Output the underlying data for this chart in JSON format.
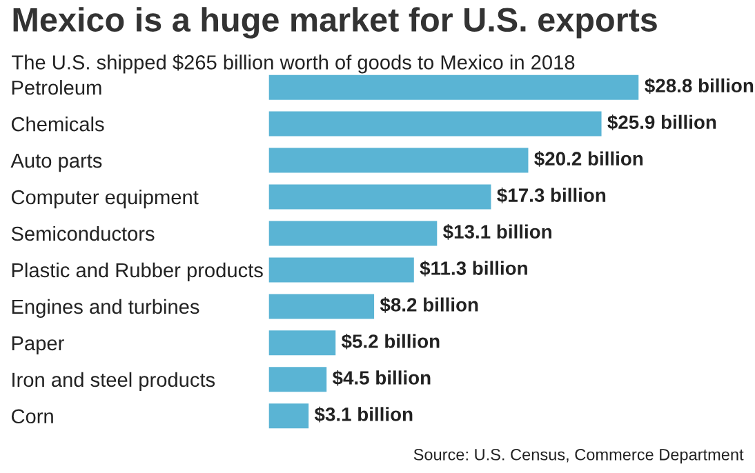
{
  "chart_data": {
    "type": "bar",
    "orientation": "horizontal",
    "title": "Mexico is a huge market for U.S. exports",
    "subtitle": "The U.S. shipped $265 billion worth of goods to Mexico in 2018",
    "categories": [
      "Petroleum",
      "Chemicals",
      "Auto parts",
      "Computer equipment",
      "Semiconductors",
      "Plastic and Rubber products",
      "Engines and turbines",
      "Paper",
      "Iron and steel products",
      "Corn"
    ],
    "values": [
      28.8,
      25.9,
      20.2,
      17.3,
      13.1,
      11.3,
      8.2,
      5.2,
      4.5,
      3.1
    ],
    "value_labels": [
      "$28.8 billion",
      "$25.9 billion",
      "$20.2 billion",
      "$17.3 billion",
      "$13.1 billion",
      "$11.3 billion",
      "$8.2 billion",
      "$5.2 billion",
      "$4.5 billion",
      "$3.1 billion"
    ],
    "color": "#5ab4d4",
    "annotations": [
      "Source: U.S. Census, Commerce Department"
    ],
    "grid": false,
    "legend": false
  }
}
